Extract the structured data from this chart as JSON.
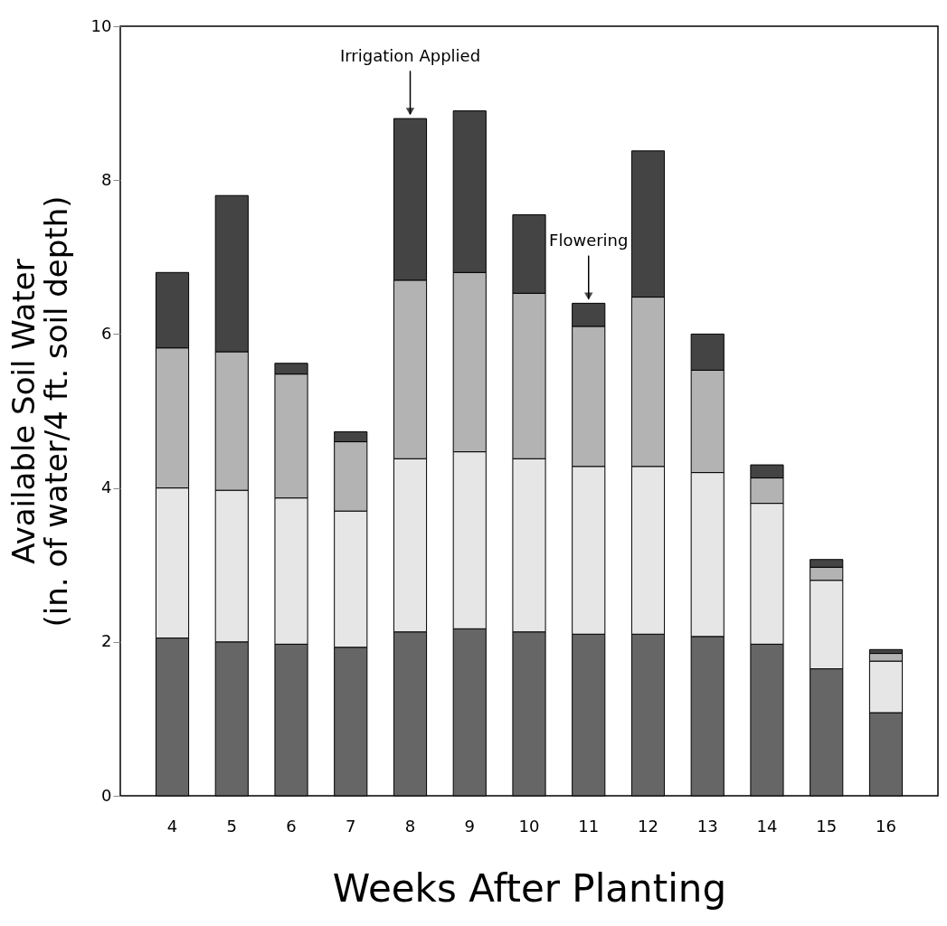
{
  "chart_data": {
    "type": "bar",
    "stacked": true,
    "xlabel": "Weeks After Planting",
    "ylabel": "Available Soil Water\n(in. of water/4 ft. soil depth)",
    "categories": [
      "4",
      "5",
      "6",
      "7",
      "8",
      "9",
      "10",
      "11",
      "12",
      "13",
      "14",
      "15",
      "16"
    ],
    "series": [
      {
        "color": "#666666",
        "values": [
          2.05,
          2.0,
          1.97,
          1.93,
          2.13,
          2.17,
          2.13,
          2.1,
          2.1,
          2.07,
          1.97,
          1.65,
          1.08
        ]
      },
      {
        "color": "#e6e6e6",
        "values": [
          1.95,
          1.97,
          1.9,
          1.77,
          2.25,
          2.3,
          2.25,
          2.18,
          2.18,
          2.13,
          1.83,
          1.15,
          0.67
        ]
      },
      {
        "color": "#b3b3b3",
        "values": [
          1.82,
          1.8,
          1.61,
          0.9,
          2.32,
          2.33,
          2.15,
          1.82,
          2.2,
          1.33,
          0.33,
          0.17,
          0.1
        ]
      },
      {
        "color": "#444444",
        "values": [
          0.98,
          2.03,
          0.14,
          0.13,
          2.1,
          2.1,
          1.02,
          0.3,
          1.9,
          0.47,
          0.17,
          0.1,
          0.05
        ]
      }
    ],
    "ylim": [
      0,
      10
    ],
    "yticks": [
      0,
      2,
      4,
      6,
      8,
      10
    ],
    "grid": false,
    "annotations": [
      {
        "text": "Irrigation Applied",
        "x": "8",
        "y": 8.8
      },
      {
        "text": "Flowering",
        "x": "11",
        "y": 6.4
      }
    ]
  }
}
